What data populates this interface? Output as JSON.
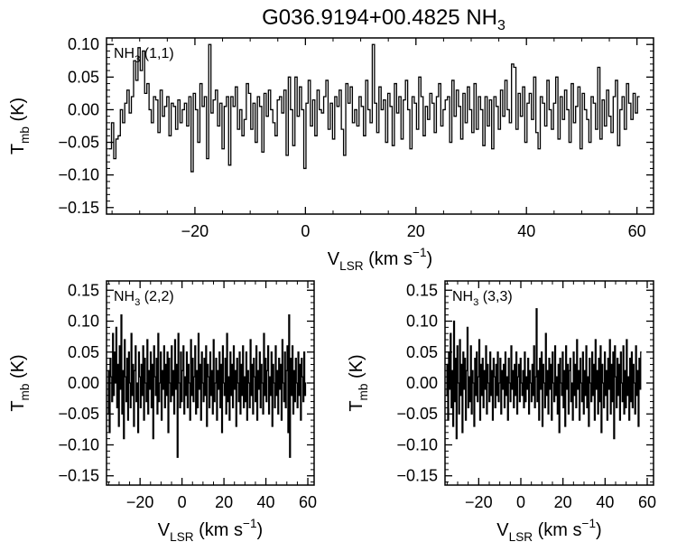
{
  "figure": {
    "title_main": "G036.9194+00.4825 NH",
    "title_sub": "3",
    "title_sup": ""
  },
  "chart_data": [
    {
      "type": "line",
      "panel_label": {
        "main": "NH",
        "sub": "3",
        "rest": " (1,1)"
      },
      "xlabel": {
        "main": "V",
        "sub": "LSR",
        "rest": " (km s",
        "sup": "−1",
        "end": ")"
      },
      "ylabel": {
        "main": "T",
        "sub": "mb",
        "rest": " (K)"
      },
      "xlim": [
        -36,
        63
      ],
      "ylim": [
        -0.16,
        0.11
      ],
      "xticks": [
        -20,
        0,
        20,
        40,
        60
      ],
      "xtick_labels": [
        "−20",
        "0",
        "20",
        "40",
        "60"
      ],
      "yticks": [
        0.1,
        0.05,
        0.0,
        -0.05,
        -0.1,
        -0.15
      ],
      "ytick_labels": [
        "0.10",
        "0.05",
        "0.00",
        "−0.05",
        "−0.10",
        "−0.15"
      ],
      "x_start": -35.5,
      "x_step": 0.4,
      "values": [
        -0.06,
        -0.02,
        -0.075,
        -0.045,
        -0.04,
        0.0,
        -0.02,
        0.01,
        0.03,
        -0.005,
        0.02,
        0.075,
        0.045,
        0.095,
        0.06,
        0.09,
        0.025,
        0.04,
        0.0,
        -0.02,
        0.02,
        0.015,
        -0.035,
        0.03,
        -0.01,
        0.005,
        0.02,
        -0.04,
        0.01,
        0.005,
        -0.03,
        0.015,
        -0.02,
        0.0,
        0.01,
        -0.025,
        0.02,
        -0.095,
        0.025,
        0.0,
        -0.05,
        0.04,
        0.005,
        0.02,
        -0.075,
        0.1,
        -0.005,
        0.015,
        0.03,
        -0.025,
        0.01,
        -0.06,
        0.005,
        0.02,
        -0.085,
        0.02,
        0.005,
        0.035,
        -0.03,
        0.0,
        -0.04,
        -0.015,
        0.04,
        0.025,
        -0.03,
        0.01,
        -0.05,
        0.02,
        0.005,
        -0.065,
        0.025,
        -0.01,
        0.03,
        0.0,
        -0.02,
        -0.04,
        0.015,
        0.02,
        -0.005,
        0.03,
        -0.07,
        0.05,
        0.0,
        -0.055,
        0.05,
        -0.01,
        0.035,
        0.0,
        -0.09,
        0.01,
        0.045,
        -0.025,
        0.015,
        -0.04,
        0.03,
        0.0,
        -0.005,
        0.02,
        0.045,
        -0.03,
        0.01,
        -0.045,
        0.02,
        0.005,
        0.03,
        -0.03,
        -0.07,
        0.04,
        0.01,
        0.035,
        -0.02,
        0.0,
        -0.025,
        0.02,
        0.005,
        -0.04,
        0.045,
        0.0,
        -0.02,
        0.1,
        0.01,
        -0.035,
        0.035,
        0.0,
        0.015,
        -0.05,
        0.025,
        0.005,
        -0.055,
        0.04,
        -0.005,
        0.02,
        -0.045,
        0.015,
        0.045,
        0.0,
        -0.06,
        0.02,
        0.01,
        -0.03,
        0.05,
        0.02,
        -0.04,
        0.005,
        -0.015,
        0.025,
        0.01,
        -0.035,
        0.02,
        0.04,
        -0.025,
        0.0,
        0.015,
        0.02,
        -0.05,
        0.045,
        -0.01,
        0.03,
        0.005,
        -0.045,
        0.025,
        -0.02,
        0.035,
        0.0,
        -0.035,
        0.04,
        -0.03,
        0.02,
        0.0,
        -0.055,
        0.02,
        -0.025,
        0.015,
        -0.06,
        0.02,
        0.005,
        -0.03,
        0.03,
        -0.01,
        0.045,
        0.0,
        -0.02,
        0.07,
        0.065,
        -0.03,
        0.025,
        -0.01,
        0.035,
        -0.05,
        0.01,
        0.025,
        -0.015,
        0.05,
        -0.035,
        -0.06,
        0.02,
        0.01,
        -0.025,
        0.045,
        0.0,
        -0.03,
        0.01,
        0.05,
        -0.045,
        0.02,
        -0.015,
        0.03,
        0.0,
        -0.05,
        0.04,
        -0.02,
        0.005,
        0.035,
        -0.06,
        0.025,
        0.0,
        -0.015,
        -0.05,
        0.02,
        0.01,
        -0.03,
        0.065,
        -0.045,
        0.015,
        -0.025,
        0.03,
        -0.01,
        -0.035,
        0.02,
        0.045,
        -0.055,
        0.0,
        0.02,
        -0.03,
        0.04,
        0.01,
        -0.015,
        0.025,
        -0.005,
        0.02
      ]
    },
    {
      "type": "line",
      "panel_label": {
        "main": "NH",
        "sub": "3",
        "rest": " (2,2)"
      },
      "xlabel": {
        "main": "V",
        "sub": "LSR",
        "rest": " (km s",
        "sup": "−1",
        "end": ")"
      },
      "ylabel": {
        "main": "T",
        "sub": "mb",
        "rest": " (K)"
      },
      "xlim": [
        -36,
        63
      ],
      "ylim": [
        -0.165,
        0.165
      ],
      "xticks": [
        -20,
        0,
        20,
        40,
        60
      ],
      "xtick_labels": [
        "−20",
        "0",
        "20",
        "40",
        "60"
      ],
      "yticks": [
        0.15,
        0.1,
        0.05,
        0.0,
        -0.05,
        -0.1,
        -0.15
      ],
      "ytick_labels": [
        "0.15",
        "0.10",
        "0.05",
        "0.00",
        "−0.05",
        "−0.10",
        "−0.15"
      ],
      "x_start": -35.5,
      "x_step": 0.4,
      "values": [
        -0.05,
        0.02,
        -0.08,
        0.04,
        0.01,
        -0.03,
        0.08,
        -0.02,
        0.05,
        0.0,
        0.09,
        -0.04,
        0.03,
        -0.07,
        0.06,
        -0.01,
        0.11,
        -0.05,
        0.02,
        -0.09,
        0.07,
        0.01,
        -0.03,
        0.04,
        -0.06,
        0.05,
        0.0,
        -0.04,
        0.08,
        -0.02,
        0.03,
        -0.07,
        0.02,
        0.06,
        -0.03,
        0.0,
        -0.08,
        0.05,
        0.01,
        -0.04,
        0.03,
        -0.02,
        0.06,
        -0.06,
        0.04,
        0.0,
        -0.03,
        0.07,
        -0.05,
        0.02,
        -0.01,
        0.05,
        -0.04,
        0.03,
        -0.09,
        0.06,
        0.01,
        -0.02,
        0.04,
        -0.05,
        0.08,
        -0.03,
        0.0,
        0.05,
        -0.06,
        0.02,
        -0.01,
        0.06,
        -0.04,
        0.03,
        -0.02,
        0.05,
        -0.08,
        0.04,
        0.0,
        -0.03,
        0.06,
        -0.02,
        0.02,
        -0.05,
        0.07,
        -0.01,
        0.03,
        -0.12,
        0.08,
        0.0,
        -0.04,
        0.05,
        -0.03,
        0.02,
        0.06,
        -0.05,
        0.01,
        -0.02,
        0.05,
        -0.04,
        0.03,
        0.0,
        -0.06,
        0.07,
        -0.02,
        0.04,
        -0.03,
        0.01,
        0.06,
        -0.05,
        0.02,
        -0.04,
        0.08,
        -0.01,
        0.03,
        -0.06,
        0.05,
        0.0,
        -0.03,
        0.04,
        -0.02,
        0.06,
        -0.07,
        0.03,
        0.01,
        -0.04,
        0.05,
        -0.02,
        0.02,
        -0.05,
        0.07,
        -0.03,
        0.0,
        0.04,
        -0.06,
        0.02,
        -0.01,
        0.05,
        -0.04,
        0.03,
        -0.08,
        0.06,
        0.0,
        -0.02,
        0.04,
        -0.05,
        0.08,
        -0.03,
        0.01,
        -0.06,
        0.05,
        -0.02,
        0.03,
        -0.04,
        0.06,
        -0.01,
        0.02,
        -0.07,
        0.04,
        0.0,
        -0.03,
        0.05,
        -0.05,
        0.03,
        -0.02,
        0.06,
        -0.04,
        0.01,
        -0.03,
        0.05,
        -0.06,
        0.02,
        0.0,
        -0.04,
        0.07,
        -0.02,
        0.03,
        -0.05,
        0.04,
        0.01,
        -0.03,
        0.06,
        -0.06,
        0.02,
        -0.01,
        0.05,
        -0.04,
        0.03,
        0.0,
        -0.05,
        0.08,
        -0.02,
        0.04,
        -0.03,
        0.02,
        0.06,
        -0.05,
        0.01,
        -0.02,
        0.05,
        -0.07,
        0.03,
        0.0,
        -0.04,
        0.06,
        -0.02,
        0.02,
        -0.05,
        0.04,
        -0.01,
        0.03,
        -0.06,
        0.07,
        0.0,
        -0.03,
        0.05,
        -0.04,
        0.02,
        0.06,
        -0.08,
        0.11,
        -0.12,
        0.04,
        -0.02,
        0.06,
        -0.05,
        0.02,
        -0.03,
        0.04,
        0.0,
        -0.04,
        0.05,
        -0.02,
        0.03,
        -0.06,
        0.04,
        0.01,
        -0.03,
        0.05,
        -0.02,
        0.0
      ]
    },
    {
      "type": "line",
      "panel_label": {
        "main": "NH",
        "sub": "3",
        "rest": " (3,3)"
      },
      "xlabel": {
        "main": "V",
        "sub": "LSR",
        "rest": " (km s",
        "sup": "−1",
        "end": ")"
      },
      "ylabel": {
        "main": "T",
        "sub": "mb",
        "rest": " (K)"
      },
      "xlim": [
        -36,
        63
      ],
      "ylim": [
        -0.165,
        0.165
      ],
      "xticks": [
        -20,
        0,
        20,
        40,
        60
      ],
      "xtick_labels": [
        "−20",
        "0",
        "20",
        "40",
        "60"
      ],
      "yticks": [
        0.15,
        0.1,
        0.05,
        0.0,
        -0.05,
        -0.1,
        -0.15
      ],
      "ytick_labels": [
        "0.15",
        "0.10",
        "0.05",
        "0.00",
        "−0.05",
        "−0.10",
        "−0.15"
      ],
      "x_start": -35.5,
      "x_step": 0.4,
      "values": [
        -0.02,
        0.03,
        -0.06,
        0.05,
        -0.01,
        0.08,
        -0.04,
        0.02,
        -0.07,
        0.1,
        -0.03,
        0.04,
        -0.09,
        0.06,
        0.0,
        -0.05,
        0.07,
        -0.02,
        0.03,
        -0.08,
        0.05,
        -0.01,
        0.04,
        -0.06,
        0.02,
        0.09,
        -0.04,
        0.01,
        -0.03,
        0.06,
        -0.05,
        0.02,
        0.0,
        -0.07,
        0.04,
        -0.02,
        0.05,
        -0.03,
        0.01,
        0.07,
        -0.06,
        0.03,
        -0.02,
        0.04,
        -0.04,
        0.02,
        -0.01,
        0.06,
        -0.05,
        0.03,
        0.0,
        -0.03,
        0.05,
        -0.02,
        0.02,
        -0.06,
        0.04,
        0.01,
        -0.04,
        0.03,
        -0.02,
        0.05,
        -0.03,
        0.0,
        0.04,
        -0.05,
        0.02,
        -0.01,
        0.03,
        -0.04,
        0.05,
        -0.02,
        0.01,
        -0.06,
        0.04,
        0.0,
        -0.03,
        0.06,
        -0.01,
        0.02,
        -0.04,
        0.03,
        -0.02,
        0.05,
        -0.05,
        0.01,
        0.03,
        -0.03,
        0.04,
        0.0,
        -0.02,
        0.02,
        -0.04,
        0.05,
        -0.03,
        0.01,
        -0.01,
        0.04,
        -0.05,
        0.02,
        0.0,
        -0.03,
        0.03,
        -0.02,
        0.06,
        -0.04,
        0.01,
        0.12,
        -0.03,
        0.02,
        -0.06,
        0.04,
        -0.01,
        0.05,
        -0.07,
        0.03,
        0.0,
        -0.04,
        0.08,
        -0.02,
        0.02,
        -0.05,
        0.04,
        -0.01,
        0.03,
        -0.06,
        0.05,
        0.0,
        -0.03,
        0.06,
        -0.02,
        0.01,
        -0.05,
        0.03,
        -0.08,
        0.04,
        0.0,
        -0.02,
        0.05,
        -0.04,
        0.02,
        -0.07,
        0.06,
        -0.01,
        0.03,
        -0.05,
        0.02,
        0.04,
        -0.03,
        0.0,
        -0.06,
        0.05,
        -0.02,
        0.03,
        -0.04,
        0.07,
        -0.01,
        0.02,
        -0.06,
        0.04,
        0.0,
        -0.03,
        0.05,
        -0.05,
        0.02,
        -0.02,
        0.06,
        -0.04,
        0.01,
        -0.07,
        0.04,
        0.0,
        -0.03,
        0.05,
        -0.02,
        0.03,
        -0.06,
        0.07,
        -0.01,
        0.02,
        -0.05,
        0.04,
        -0.03,
        0.06,
        -0.08,
        0.03,
        0.0,
        -0.04,
        0.05,
        -0.02,
        0.02,
        -0.06,
        0.04,
        -0.01,
        0.07,
        -0.05,
        0.03,
        -0.03,
        0.05,
        -0.09,
        0.06,
        0.01,
        -0.04,
        0.04,
        -0.02,
        0.03,
        -0.06,
        0.05,
        0.0,
        -0.03,
        0.06,
        -0.05,
        0.02,
        -0.04,
        0.07,
        -0.02,
        0.01,
        -0.06,
        0.04,
        -0.03,
        0.05,
        -0.04,
        0.03,
        0.0,
        -0.05,
        0.06,
        -0.02,
        0.02,
        -0.07,
        0.04,
        -0.01,
        0.05
      ]
    }
  ]
}
